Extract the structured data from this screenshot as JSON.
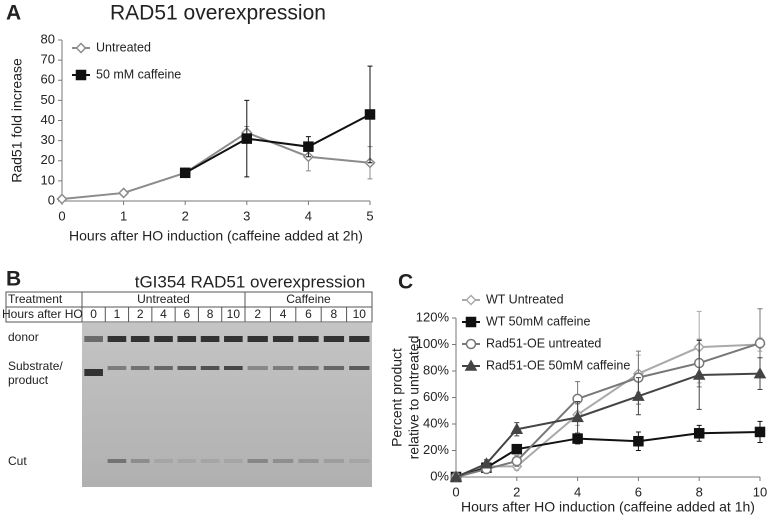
{
  "chart_data": [
    {
      "type": "line",
      "panel": "A",
      "title": "RAD51 overexpression",
      "x_label": "Hours after HO induction (caffeine added at 2h)",
      "y_label": "Rad51 fold increase",
      "xlim": [
        0,
        5
      ],
      "xticks": [
        0,
        1,
        2,
        3,
        4,
        5
      ],
      "ylim": [
        0,
        80
      ],
      "yticks": [
        0,
        10,
        20,
        30,
        40,
        50,
        60,
        70,
        80
      ],
      "legend": "upper left",
      "series": [
        {
          "name": "Untreated",
          "color": "#8c8c8c",
          "marker": "diamond",
          "open": true,
          "x": [
            0,
            1,
            2,
            3,
            4,
            5
          ],
          "values": [
            1,
            4,
            14,
            34,
            22,
            19
          ],
          "errors": [
            0.5,
            1,
            1,
            3,
            7,
            8
          ]
        },
        {
          "name": "50 mM caffeine",
          "color": "#111111",
          "marker": "square",
          "open": false,
          "x": [
            2,
            3,
            4,
            5
          ],
          "values": [
            14,
            31,
            27,
            43
          ],
          "errors": [
            1,
            19,
            5,
            24
          ]
        }
      ]
    },
    {
      "type": "line",
      "panel": "C",
      "x_label": "Hours after HO induction (caffeine added at 1h)",
      "y_label": [
        "Percent product",
        "relative to untreated"
      ],
      "xlim": [
        0,
        10
      ],
      "xticks": [
        0,
        2,
        4,
        6,
        8,
        10
      ],
      "ylim": [
        0,
        120
      ],
      "yticks": [
        {
          "value": 0,
          "label": "0%"
        },
        {
          "value": 20,
          "label": "20%"
        },
        {
          "value": 40,
          "label": "40%"
        },
        {
          "value": 60,
          "label": "60%"
        },
        {
          "value": 80,
          "label": "80%"
        },
        {
          "value": 100,
          "label": "100%"
        },
        {
          "value": 120,
          "label": "120%"
        }
      ],
      "legend": "upper left",
      "series": [
        {
          "name": "WT Untreated",
          "color": "#aaaaaa",
          "marker": "diamond",
          "open": true,
          "x": [
            0,
            1,
            2,
            4,
            6,
            8,
            10
          ],
          "values": [
            0,
            8,
            8,
            47,
            78,
            98,
            100
          ],
          "errors": [
            0,
            2,
            3,
            8,
            14,
            27,
            5
          ]
        },
        {
          "name": "WT 50mM caffeine",
          "color": "#111111",
          "marker": "square",
          "open": false,
          "x": [
            0,
            1,
            2,
            4,
            6,
            8,
            10
          ],
          "values": [
            0,
            7,
            21,
            29,
            27,
            33,
            34
          ],
          "errors": [
            0,
            2,
            3,
            4,
            7,
            6,
            8
          ]
        },
        {
          "name": "Rad51-OE untreated",
          "color": "#777777",
          "marker": "circle",
          "open": true,
          "x": [
            0,
            1,
            2,
            4,
            6,
            8,
            10
          ],
          "values": [
            0,
            6,
            12,
            59,
            75,
            86,
            101
          ],
          "errors": [
            0,
            2,
            4,
            13,
            20,
            18,
            26
          ]
        },
        {
          "name": "Rad51-OE 50mM caffeine",
          "color": "#444444",
          "marker": "triangle",
          "open": false,
          "x": [
            0,
            1,
            2,
            4,
            6,
            8,
            10
          ],
          "values": [
            0,
            10,
            36,
            45,
            61,
            77,
            78
          ],
          "errors": [
            0,
            3,
            5,
            12,
            14,
            26,
            12
          ]
        }
      ]
    }
  ],
  "gel": {
    "panel": "B",
    "title": "tGI354 RAD51 overexpression",
    "treatment_label": "Treatment",
    "hours_label": "Hours after HO",
    "groups": [
      {
        "name": "Untreated",
        "hours": [
          "0",
          "1",
          "2",
          "4",
          "6",
          "8",
          "10"
        ]
      },
      {
        "name": "Caffeine",
        "hours": [
          "2",
          "4",
          "6",
          "8",
          "10"
        ]
      }
    ],
    "band_labels": [
      "donor",
      "Substrate/",
      "product",
      "Cut"
    ]
  }
}
